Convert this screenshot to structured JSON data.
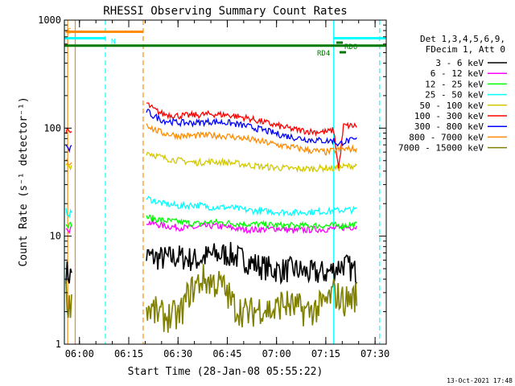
{
  "chart_data": {
    "type": "line",
    "title": "RHESSI Observing Summary Count Rates",
    "xlabel": "Start Time (28-Jan-08 05:55:22)",
    "ylabel": "Count Rate (s⁻¹ detector⁻¹)",
    "footer": "13-Oct-2021 17:48",
    "x_unit": "minutes since 05:55:22",
    "xlim": [
      0,
      98
    ],
    "ylim": [
      1,
      1000
    ],
    "y_scale": "log",
    "x_ticks": [
      {
        "at": 4.6,
        "label": "06:00"
      },
      {
        "at": 19.6,
        "label": "06:15"
      },
      {
        "at": 34.6,
        "label": "06:30"
      },
      {
        "at": 49.6,
        "label": "06:45"
      },
      {
        "at": 64.6,
        "label": "07:00"
      },
      {
        "at": 79.6,
        "label": "07:15"
      },
      {
        "at": 94.6,
        "label": "07:30"
      }
    ],
    "y_ticks": [
      "1",
      "10",
      "100",
      "1000"
    ],
    "legend": {
      "header": [
        "Det 1,3,4,5,6,9,",
        "FDecim 1, Att 0"
      ],
      "placement": "right"
    },
    "series": [
      {
        "name": "3 - 6 keV",
        "color": "#000000",
        "segments": [
          {
            "x": [
              0.5,
              1.5,
              2.2
            ],
            "y": [
              4.8,
              4.3,
              4.5
            ]
          },
          {
            "x": [
              25,
              30,
              35,
              40,
              45,
              50,
              55,
              60,
              65,
              70,
              75,
              80,
              85,
              89
            ],
            "y": [
              6.5,
              6.2,
              6.4,
              6.0,
              6.7,
              6.8,
              6.0,
              5.2,
              4.8,
              4.9,
              4.5,
              4.6,
              5.5,
              4.6
            ]
          }
        ]
      },
      {
        "name": "6 - 12 keV",
        "color": "#ff00ff",
        "segments": [
          {
            "x": [
              0.5,
              1.5,
              2.2
            ],
            "y": [
              12.5,
              11.5,
              12.0
            ]
          },
          {
            "x": [
              25,
              30,
              35,
              40,
              45,
              50,
              55,
              60,
              65,
              70,
              75,
              80,
              85,
              89
            ],
            "y": [
              13.5,
              12.5,
              12.0,
              12.0,
              12.5,
              12.0,
              11.5,
              11.5,
              11.8,
              11.2,
              11.5,
              11.6,
              12.0,
              12.2
            ]
          }
        ]
      },
      {
        "name": "12 - 25 keV",
        "color": "#00ff00",
        "segments": [
          {
            "x": [
              0.5,
              1.5,
              2.2
            ],
            "y": [
              13.5,
              12.5,
              13.0
            ]
          },
          {
            "x": [
              25,
              30,
              35,
              40,
              45,
              50,
              55,
              60,
              65,
              70,
              75,
              80,
              85,
              89
            ],
            "y": [
              15.0,
              14.0,
              13.5,
              13.0,
              13.5,
              13.2,
              13.0,
              12.8,
              12.6,
              12.5,
              12.5,
              12.5,
              12.6,
              12.8
            ]
          }
        ]
      },
      {
        "name": "25 - 50 keV",
        "color": "#00ffff",
        "segments": [
          {
            "x": [
              0.5,
              1.5,
              2.2
            ],
            "y": [
              17.0,
              16.0,
              16.5
            ]
          },
          {
            "x": [
              25,
              30,
              35,
              40,
              45,
              50,
              55,
              60,
              65,
              70,
              75,
              80,
              85,
              89
            ],
            "y": [
              22.5,
              20.0,
              19.0,
              19.5,
              18.5,
              18.5,
              17.5,
              17.0,
              16.8,
              16.5,
              16.8,
              17.0,
              17.5,
              17.5
            ]
          }
        ]
      },
      {
        "name": "50 - 100 keV",
        "color": "#d4c800",
        "segments": [
          {
            "x": [
              0.5,
              1.5,
              2.2
            ],
            "y": [
              46.0,
              44.0,
              45.0
            ]
          },
          {
            "x": [
              25,
              30,
              35,
              40,
              45,
              50,
              55,
              60,
              65,
              70,
              75,
              80,
              82,
              85,
              89
            ],
            "y": [
              60.0,
              53.0,
              50.0,
              48.0,
              49.0,
              48.0,
              46.0,
              44.0,
              43.0,
              42.0,
              42.0,
              43.0,
              42.0,
              44.0,
              45.0
            ]
          }
        ]
      },
      {
        "name": "100 - 300 keV",
        "color": "#ff0000",
        "segments": [
          {
            "x": [
              0.5,
              1.5,
              2.2
            ],
            "y": [
              95.0,
              90.0,
              92.0
            ]
          },
          {
            "x": [
              25,
              27,
              30,
              35,
              40,
              45,
              50,
              55,
              60,
              65,
              70,
              75,
              80,
              82,
              83.5,
              85,
              89
            ],
            "y": [
              170.0,
              150.0,
              135.0,
              130.0,
              132.0,
              135.0,
              132.0,
              125.0,
              115.0,
              105.0,
              97.0,
              93.0,
              92.0,
              96.0,
              42.0,
              105.0,
              105.0
            ]
          }
        ]
      },
      {
        "name": "300 - 800 keV",
        "color": "#0000ff",
        "segments": [
          {
            "x": [
              0.5,
              1.5,
              2.2
            ],
            "y": [
              68.0,
              63.0,
              65.0
            ]
          },
          {
            "x": [
              25,
              27,
              30,
              35,
              40,
              45,
              50,
              55,
              60,
              65,
              70,
              75,
              80,
              82,
              83.5,
              85,
              89
            ],
            "y": [
              145.0,
              130.0,
              118.0,
              112.0,
              112.0,
              115.0,
              112.0,
              105.0,
              97.0,
              88.0,
              82.0,
              78.0,
              76.0,
              77.0,
              70.0,
              75.0,
              78.0
            ]
          }
        ]
      },
      {
        "name": "800 - 7000 keV",
        "color": "#ff8c00",
        "segments": [
          {
            "x": [
              0.5,
              1.5,
              2.2
            ],
            "y": [
              50.0,
              47.0,
              49.0
            ]
          },
          {
            "x": [
              25,
              27,
              30,
              35,
              40,
              45,
              50,
              55,
              60,
              65,
              70,
              75,
              80,
              82,
              85,
              89
            ],
            "y": [
              110.0,
              98.0,
              90.0,
              85.0,
              85.0,
              86.0,
              84.0,
              80.0,
              75.0,
              70.0,
              66.0,
              62.0,
              60.0,
              62.0,
              64.0,
              64.0
            ]
          }
        ]
      },
      {
        "name": "7000 - 15000 keV",
        "color": "#808000",
        "segments": [
          {
            "x": [
              0.5,
              1.5,
              2.2
            ],
            "y": [
              3.0,
              2.2,
              2.8
            ]
          },
          {
            "x": [
              25,
              30,
              35,
              38,
              42,
              48,
              52,
              56,
              60,
              64,
              66,
              70,
              74,
              78,
              80,
              82,
              85,
              89
            ],
            "y": [
              2.2,
              1.8,
              1.8,
              3.0,
              4.0,
              3.5,
              2.2,
              1.9,
              2.2,
              2.0,
              2.4,
              2.2,
              2.0,
              2.2,
              2.5,
              3.0,
              2.5,
              2.8
            ]
          }
        ]
      }
    ],
    "vertical_lines": [
      {
        "x": 0.0,
        "color": "#00ffff",
        "style": "solid"
      },
      {
        "x": 1.0,
        "color": "#ff8c00",
        "style": "solid"
      },
      {
        "x": 3.3,
        "color": "#ff8c00",
        "style": "solid"
      },
      {
        "x": 12.5,
        "color": "#00ffff",
        "style": "dashed"
      },
      {
        "x": 24.0,
        "color": "#ff8c00",
        "style": "dashed"
      },
      {
        "x": 82.0,
        "color": "#00ffff",
        "style": "solid"
      },
      {
        "x": 96.0,
        "color": "#00ffff",
        "style": "dashed"
      }
    ],
    "state_bars": [
      {
        "label": "S",
        "x0": 0.4,
        "x1": 24.0,
        "level": 780,
        "color": "#ff8c00"
      },
      {
        "label": "N",
        "x0": 0.0,
        "x1": 12.5,
        "level": 680,
        "color": "#00ffff"
      },
      {
        "label": "",
        "x0": 82.0,
        "x1": 98.0,
        "level": 680,
        "color": "#00ffff"
      },
      {
        "label": "",
        "x0": 0.0,
        "x1": 98.0,
        "level": 580,
        "color": "#007a00"
      }
    ],
    "annotations": [
      {
        "label": "RDO",
        "color": "#007a00"
      },
      {
        "label": "RD4",
        "color": "#007a00"
      }
    ]
  }
}
